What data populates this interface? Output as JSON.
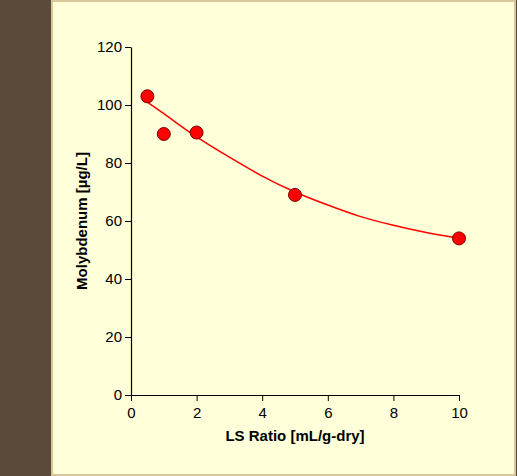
{
  "chart_data": {
    "type": "scatter",
    "x_label": "LS Ratio  [mL/g-dry]",
    "y_label": "Molybdenum  [µg/L]",
    "xlim": [
      0,
      10
    ],
    "xticks": [
      0,
      2,
      4,
      6,
      8,
      10
    ],
    "ylim": [
      0,
      120
    ],
    "yticks": [
      0,
      20,
      40,
      60,
      80,
      100,
      120
    ],
    "series": [
      {
        "type": "scatter",
        "color": "#ff0000",
        "marker": "circle",
        "x": [
          0.5,
          1,
          2,
          5,
          10
        ],
        "values": [
          103,
          90,
          90.5,
          69,
          54
        ]
      },
      {
        "type": "line",
        "color": "#ff0000",
        "line_style": "solid",
        "x": [
          0.5,
          1,
          2,
          3,
          4,
          5,
          6,
          7,
          8,
          9,
          10
        ],
        "values": [
          101,
          97,
          89,
          82,
          75.5,
          70,
          65.5,
          61.5,
          58.5,
          56,
          54
        ]
      }
    ]
  }
}
